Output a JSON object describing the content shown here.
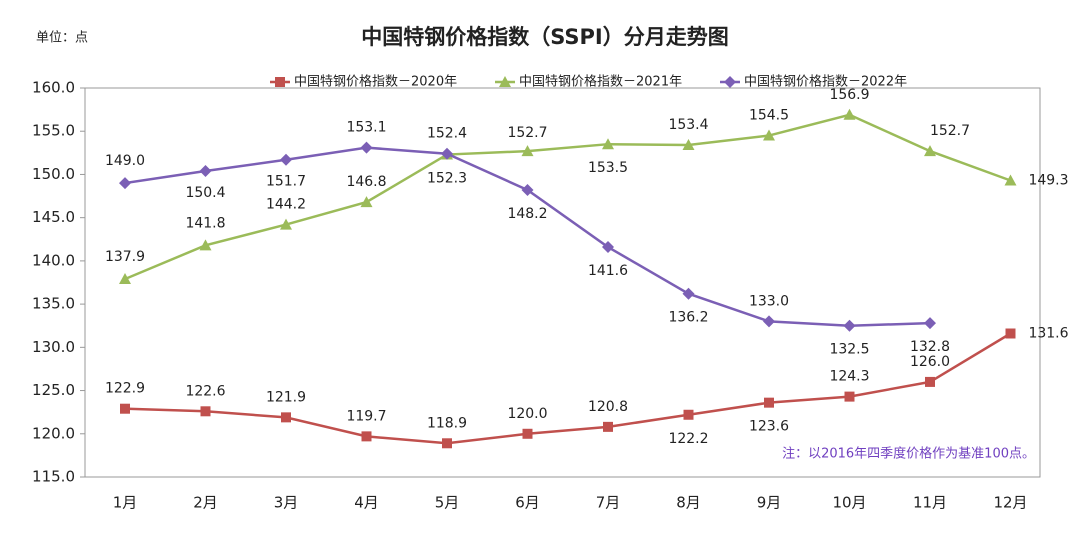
{
  "chart_data": {
    "type": "line",
    "title": "中国特钢价格指数（SSPI）分月走势图",
    "unit_label": "单位：点",
    "note": "注：以2016年四季度价格作为基准100点。",
    "categories": [
      "1月",
      "2月",
      "3月",
      "4月",
      "5月",
      "6月",
      "7月",
      "8月",
      "9月",
      "10月",
      "11月",
      "12月"
    ],
    "series": [
      {
        "name": "中国特钢价格指数－2020年",
        "color": "#c0504d",
        "marker": "square",
        "values": [
          122.9,
          122.6,
          121.9,
          119.7,
          118.9,
          120.0,
          120.8,
          122.2,
          123.6,
          124.3,
          126.0,
          131.6
        ],
        "value_labels": [
          "122.9",
          "122.6",
          "121.9",
          "119.7",
          "118.9",
          "120.0",
          "120.8",
          "122.2",
          "123.6",
          "124.3",
          "126.0",
          "131.6"
        ]
      },
      {
        "name": "中国特钢价格指数－2021年",
        "color": "#9bbb59",
        "marker": "triangle",
        "values": [
          137.9,
          141.8,
          144.2,
          146.8,
          152.3,
          152.7,
          153.5,
          153.4,
          154.5,
          156.9,
          152.7,
          149.3
        ],
        "value_labels": [
          "137.9",
          "141.8",
          "144.2",
          "146.8",
          "152.3",
          "152.7",
          "153.5",
          "153.4",
          "154.5",
          "156.9",
          "152.7",
          "149.3"
        ]
      },
      {
        "name": "中国特钢价格指数－2022年",
        "color": "#7b5fb5",
        "marker": "diamond",
        "values": [
          149.0,
          150.4,
          151.7,
          153.1,
          152.4,
          148.2,
          141.6,
          136.2,
          133.0,
          132.5,
          132.8,
          null
        ],
        "value_labels": [
          "149.0",
          "150.4",
          "151.7",
          "153.1",
          "152.4",
          "148.2",
          "141.6",
          "136.2",
          "133.0",
          "132.5",
          "132.8",
          null
        ]
      }
    ],
    "ylim": [
      115,
      160
    ],
    "yticks": [
      {
        "value": 115,
        "label": "115.0"
      },
      {
        "value": 120,
        "label": "120.0"
      },
      {
        "value": 125,
        "label": "125.0"
      },
      {
        "value": 130,
        "label": "130.0"
      },
      {
        "value": 135,
        "label": "135.0"
      },
      {
        "value": 140,
        "label": "140.0"
      },
      {
        "value": 145,
        "label": "145.0"
      },
      {
        "value": 150,
        "label": "150.0"
      },
      {
        "value": 155,
        "label": "155.0"
      },
      {
        "value": 160,
        "label": "160.0"
      }
    ],
    "grid": false
  }
}
